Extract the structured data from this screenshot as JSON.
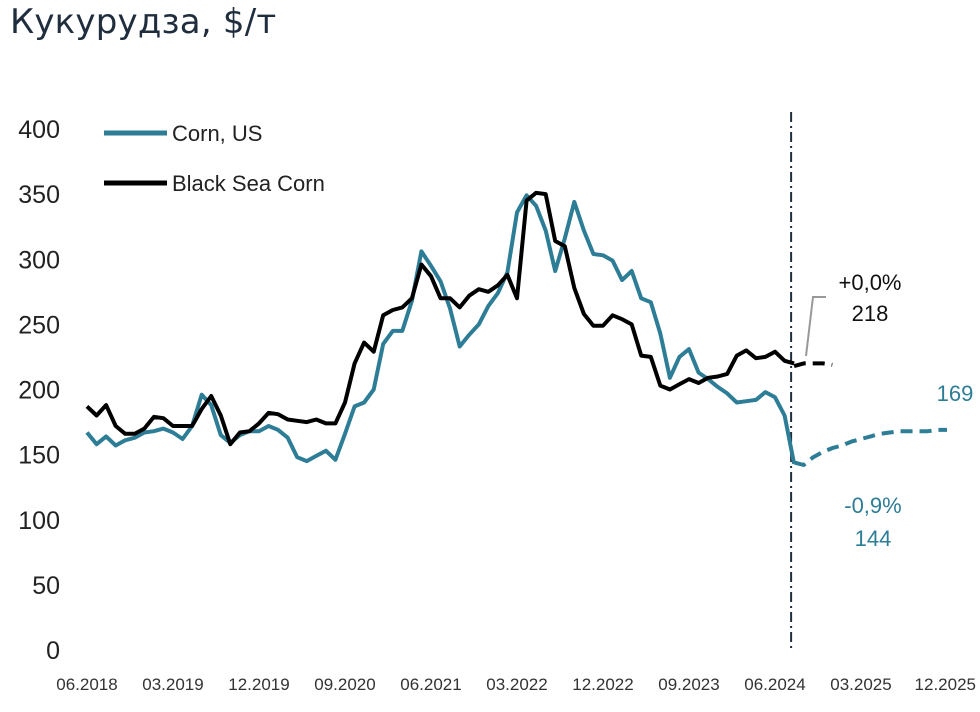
{
  "chart_data": {
    "type": "line",
    "title": "Кукурудза, $/т",
    "xlabel": "",
    "ylabel": "",
    "ylim": [
      0,
      400
    ],
    "yticks": [
      0,
      50,
      100,
      150,
      200,
      250,
      300,
      350,
      400
    ],
    "xlim": [
      "06.2018",
      "12.2025"
    ],
    "xticks": [
      "06.2018",
      "03.2019",
      "12.2019",
      "09.2020",
      "06.2021",
      "03.2022",
      "12.2022",
      "09.2023",
      "06.2024",
      "03.2025",
      "12.2025"
    ],
    "grid": false,
    "legend_position": "top-left",
    "colors": {
      "corn_us": "#2e7d96",
      "black_sea": "#000000",
      "divider": "#1f2d3d",
      "leader": "#999999"
    },
    "forecast_start": "08.2024",
    "series": [
      {
        "name": "Corn, US",
        "color": "#2e7d96",
        "x": [
          "06.2018",
          "07.2018",
          "08.2018",
          "09.2018",
          "10.2018",
          "11.2018",
          "12.2018",
          "01.2019",
          "02.2019",
          "03.2019",
          "04.2019",
          "05.2019",
          "06.2019",
          "07.2019",
          "08.2019",
          "09.2019",
          "10.2019",
          "11.2019",
          "12.2019",
          "01.2020",
          "02.2020",
          "03.2020",
          "04.2020",
          "05.2020",
          "06.2020",
          "07.2020",
          "08.2020",
          "09.2020",
          "10.2020",
          "11.2020",
          "12.2020",
          "01.2021",
          "02.2021",
          "03.2021",
          "04.2021",
          "05.2021",
          "06.2021",
          "07.2021",
          "08.2021",
          "09.2021",
          "10.2021",
          "11.2021",
          "12.2021",
          "01.2022",
          "02.2022",
          "03.2022",
          "04.2022",
          "05.2022",
          "06.2022",
          "07.2022",
          "08.2022",
          "09.2022",
          "10.2022",
          "11.2022",
          "12.2022",
          "01.2023",
          "02.2023",
          "03.2023",
          "04.2023",
          "05.2023",
          "06.2023",
          "07.2023",
          "08.2023",
          "09.2023",
          "10.2023",
          "11.2023",
          "12.2023",
          "01.2024",
          "02.2024",
          "03.2024",
          "04.2024",
          "05.2024",
          "06.2024",
          "07.2024",
          "08.2024"
        ],
        "values": [
          167,
          158,
          164,
          157,
          161,
          163,
          167,
          168,
          170,
          167,
          162,
          172,
          196,
          188,
          165,
          159,
          165,
          168,
          168,
          172,
          169,
          163,
          148,
          145,
          149,
          153,
          146,
          166,
          187,
          190,
          200,
          235,
          245,
          245,
          268,
          306,
          295,
          283,
          262,
          233,
          242,
          250,
          264,
          274,
          290,
          336,
          349,
          341,
          322,
          291,
          316,
          344,
          322,
          304,
          303,
          299,
          284,
          291,
          270,
          267,
          243,
          209,
          225,
          231,
          213,
          208,
          202,
          197,
          190,
          191,
          192,
          198,
          194,
          180,
          143
        ]
      },
      {
        "name": "Black Sea Corn",
        "color": "#000000",
        "x": [
          "06.2018",
          "07.2018",
          "08.2018",
          "09.2018",
          "10.2018",
          "11.2018",
          "12.2018",
          "01.2019",
          "02.2019",
          "03.2019",
          "04.2019",
          "05.2019",
          "06.2019",
          "07.2019",
          "08.2019",
          "09.2019",
          "10.2019",
          "11.2019",
          "12.2019",
          "01.2020",
          "02.2020",
          "03.2020",
          "04.2020",
          "05.2020",
          "06.2020",
          "07.2020",
          "08.2020",
          "09.2020",
          "10.2020",
          "11.2020",
          "12.2020",
          "01.2021",
          "02.2021",
          "03.2021",
          "04.2021",
          "05.2021",
          "06.2021",
          "07.2021",
          "08.2021",
          "09.2021",
          "10.2021",
          "11.2021",
          "12.2021",
          "01.2022",
          "02.2022",
          "03.2022",
          "04.2022",
          "05.2022",
          "06.2022",
          "07.2022",
          "08.2022",
          "09.2022",
          "10.2022",
          "11.2022",
          "12.2022",
          "01.2023",
          "02.2023",
          "03.2023",
          "04.2023",
          "05.2023",
          "06.2023",
          "07.2023",
          "08.2023",
          "09.2023",
          "10.2023",
          "11.2023",
          "12.2023",
          "01.2024",
          "02.2024",
          "03.2024",
          "04.2024",
          "05.2024",
          "06.2024",
          "07.2024",
          "08.2024"
        ],
        "values": [
          187,
          180,
          188,
          172,
          166,
          166,
          170,
          179,
          178,
          172,
          172,
          172,
          185,
          195,
          180,
          158,
          167,
          168,
          174,
          182,
          181,
          177,
          176,
          175,
          177,
          174,
          174,
          190,
          220,
          236,
          229,
          257,
          261,
          263,
          270,
          296,
          287,
          270,
          270,
          263,
          272,
          277,
          275,
          280,
          288,
          270,
          345,
          351,
          350,
          314,
          310,
          278,
          258,
          249,
          249,
          257,
          254,
          250,
          226,
          225,
          203,
          200,
          204,
          208,
          205,
          209,
          210,
          212,
          226,
          230,
          224,
          225,
          229,
          222,
          220
        ]
      },
      {
        "name": "",
        "color": "#2e7d96",
        "dashed": true,
        "x": [
          "08.2024",
          "09.2024",
          "10.2024",
          "11.2024",
          "12.2024",
          "01.2025",
          "02.2025",
          "03.2025",
          "04.2025",
          "05.2025",
          "06.2025",
          "07.2025",
          "08.2025",
          "09.2025",
          "10.2025",
          "11.2025",
          "12.2025"
        ],
        "values": [
          144,
          142,
          148,
          152,
          155,
          157,
          160,
          162,
          164,
          166,
          167,
          168,
          168,
          168,
          168,
          169,
          169
        ]
      },
      {
        "name": "",
        "color": "#000000",
        "dashed": true,
        "x": [
          "08.2024",
          "09.2024",
          "10.2024",
          "11.2024",
          "12.2024"
        ],
        "values": [
          218,
          220,
          220,
          220,
          219
        ]
      }
    ],
    "annotations": [
      {
        "id": "black-sea-change",
        "line1": "+0,0%",
        "line2": "218",
        "color": "#111111"
      },
      {
        "id": "corn-us-change",
        "line1": "-0,9%",
        "line2": "144",
        "color": "#2e7d96"
      },
      {
        "id": "corn-us-end",
        "line1": "169",
        "color": "#2e7d96"
      }
    ]
  }
}
